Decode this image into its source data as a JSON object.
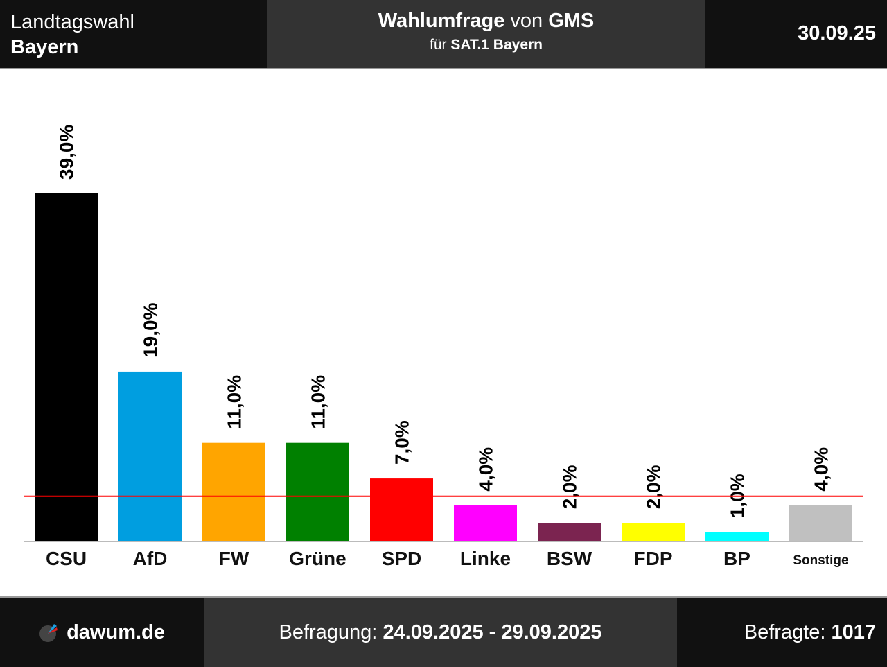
{
  "header": {
    "title_line1": "Landtagswahl",
    "title_line2": "Bayern",
    "poll_prefix": "Wahlumfrage",
    "poll_von": "von",
    "institute": "GMS",
    "for_prefix": "für",
    "client": "SAT.1 Bayern",
    "date": "30.09.25"
  },
  "footer": {
    "logo_text": "dawum.de",
    "period_label": "Befragung:",
    "period": "24.09.2025 - 29.09.2025",
    "respondents_label": "Befragte:",
    "respondents": "1017"
  },
  "chart_data": {
    "type": "bar",
    "categories": [
      "CSU",
      "AfD",
      "FW",
      "Grüne",
      "SPD",
      "Linke",
      "BSW",
      "FDP",
      "BP",
      "Sonstige"
    ],
    "values": [
      39.0,
      19.0,
      11.0,
      11.0,
      7.0,
      4.0,
      2.0,
      2.0,
      1.0,
      4.0
    ],
    "labels": [
      "39,0%",
      "19,0%",
      "11,0%",
      "11,0%",
      "7,0%",
      "4,0%",
      "2,0%",
      "2,0%",
      "1,0%",
      "4,0%"
    ],
    "colors": [
      "#000000",
      "#009ee0",
      "#ffa500",
      "#008000",
      "#ff0000",
      "#ff00ff",
      "#7b2450",
      "#ffff00",
      "#00ffff",
      "#c0c0c0"
    ],
    "threshold": 5,
    "threshold_color": "#ff0000",
    "ylim": [
      0,
      39
    ]
  }
}
